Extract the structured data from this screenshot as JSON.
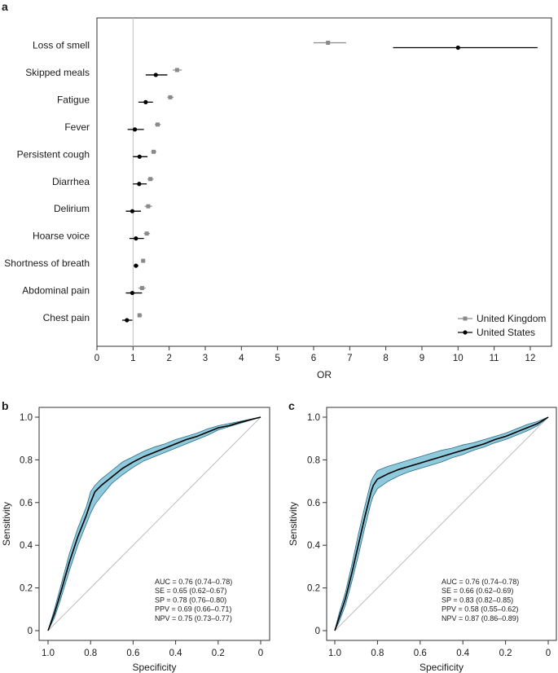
{
  "colors": {
    "uk": "#8a8a8a",
    "us": "#000000",
    "band_fill": "#8ec9dc",
    "band_stroke": "#2b6f86",
    "refline": "#bdbdbd",
    "axis": "#333333"
  },
  "chart_data": [
    {
      "panel": "a",
      "type": "forest",
      "xlabel": "OR",
      "xlim": [
        0,
        12.5
      ],
      "xticks": [
        "0",
        "1",
        "2",
        "3",
        "4",
        "5",
        "6",
        "7",
        "8",
        "9",
        "10",
        "11",
        "12"
      ],
      "reference_line": 1,
      "categories": [
        "Loss of smell",
        "Skipped meals",
        "Fatigue",
        "Fever",
        "Persistent cough",
        "Diarrhea",
        "Delirium",
        "Hoarse voice",
        "Shortness of breath",
        "Abdominal pain",
        "Chest pain"
      ],
      "legend": {
        "position": "bottom-right",
        "entries": [
          "United Kingdom",
          "United States"
        ]
      },
      "series": [
        {
          "name": "United Kingdom",
          "marker": "square",
          "or": [
            6.4,
            2.22,
            2.03,
            1.68,
            1.57,
            1.48,
            1.42,
            1.38,
            1.28,
            1.25,
            1.18
          ],
          "lower": [
            6.0,
            2.1,
            1.95,
            1.6,
            1.5,
            1.4,
            1.32,
            1.3,
            1.22,
            1.15,
            1.12
          ],
          "upper": [
            6.9,
            2.35,
            2.12,
            1.77,
            1.65,
            1.57,
            1.53,
            1.47,
            1.34,
            1.35,
            1.25
          ]
        },
        {
          "name": "United States",
          "marker": "circle",
          "or": [
            10.0,
            1.63,
            1.35,
            1.05,
            1.18,
            1.17,
            0.98,
            1.08,
            1.08,
            0.98,
            0.83
          ],
          "lower": [
            8.2,
            1.35,
            1.15,
            0.85,
            1.0,
            1.0,
            0.8,
            0.9,
            1.02,
            0.8,
            0.7
          ],
          "upper": [
            12.2,
            1.95,
            1.55,
            1.3,
            1.4,
            1.38,
            1.22,
            1.3,
            1.15,
            1.25,
            0.98
          ]
        }
      ]
    },
    {
      "panel": "b",
      "type": "line",
      "xlabel": "Specificity",
      "ylabel": "Sensitivity",
      "xlim": [
        1.0,
        0.0
      ],
      "ylim": [
        0.0,
        1.0
      ],
      "xticks": [
        "1.0",
        "0.8",
        "0.6",
        "0.4",
        "0.2",
        "0"
      ],
      "yticks": [
        "0",
        "0.2",
        "0.4",
        "0.6",
        "0.8",
        "1.0"
      ],
      "roc": {
        "specificity": [
          1.0,
          0.97,
          0.94,
          0.9,
          0.86,
          0.82,
          0.8,
          0.78,
          0.75,
          0.7,
          0.65,
          0.6,
          0.55,
          0.5,
          0.45,
          0.4,
          0.35,
          0.3,
          0.25,
          0.2,
          0.15,
          0.1,
          0.05,
          0.0
        ],
        "sensitivity": [
          0.0,
          0.08,
          0.18,
          0.32,
          0.44,
          0.54,
          0.6,
          0.65,
          0.68,
          0.72,
          0.76,
          0.79,
          0.815,
          0.835,
          0.855,
          0.875,
          0.895,
          0.91,
          0.93,
          0.95,
          0.96,
          0.975,
          0.988,
          1.0
        ],
        "ci_lower": [
          0.0,
          0.06,
          0.15,
          0.28,
          0.4,
          0.5,
          0.55,
          0.59,
          0.63,
          0.69,
          0.73,
          0.765,
          0.795,
          0.815,
          0.835,
          0.855,
          0.875,
          0.895,
          0.915,
          0.94,
          0.955,
          0.97,
          0.985,
          1.0
        ],
        "ci_upper": [
          0.0,
          0.1,
          0.21,
          0.36,
          0.48,
          0.58,
          0.65,
          0.68,
          0.71,
          0.75,
          0.79,
          0.815,
          0.84,
          0.86,
          0.875,
          0.895,
          0.91,
          0.925,
          0.945,
          0.96,
          0.97,
          0.98,
          0.99,
          1.0
        ]
      },
      "stats": [
        "AUC = 0.76 (0.74–0.78)",
        "SE = 0.65 (0.62–0.67)",
        "SP = 0.78 (0.76–0.80)",
        "PPV = 0.69 (0.66–0.71)",
        "NPV = 0.75 (0.73–0.77)"
      ]
    },
    {
      "panel": "c",
      "type": "line",
      "xlabel": "Specificity",
      "ylabel": "Sensitivity",
      "xlim": [
        1.0,
        0.0
      ],
      "ylim": [
        0.0,
        1.0
      ],
      "xticks": [
        "1.0",
        "0.8",
        "0.6",
        "0.4",
        "0.2",
        "0"
      ],
      "yticks": [
        "0",
        "0.2",
        "0.4",
        "0.6",
        "0.8",
        "1.0"
      ],
      "roc": {
        "specificity": [
          1.0,
          0.98,
          0.95,
          0.92,
          0.89,
          0.86,
          0.84,
          0.83,
          0.82,
          0.8,
          0.75,
          0.7,
          0.65,
          0.6,
          0.55,
          0.5,
          0.45,
          0.4,
          0.35,
          0.3,
          0.25,
          0.2,
          0.15,
          0.1,
          0.05,
          0.0
        ],
        "sensitivity": [
          0.0,
          0.06,
          0.15,
          0.27,
          0.4,
          0.53,
          0.61,
          0.65,
          0.68,
          0.71,
          0.735,
          0.755,
          0.77,
          0.785,
          0.8,
          0.815,
          0.83,
          0.845,
          0.86,
          0.875,
          0.895,
          0.91,
          0.93,
          0.95,
          0.97,
          1.0
        ],
        "ci_lower": [
          0.0,
          0.04,
          0.12,
          0.23,
          0.35,
          0.48,
          0.56,
          0.6,
          0.63,
          0.665,
          0.7,
          0.725,
          0.745,
          0.76,
          0.775,
          0.79,
          0.81,
          0.825,
          0.845,
          0.86,
          0.88,
          0.895,
          0.915,
          0.935,
          0.96,
          1.0
        ],
        "ci_upper": [
          0.0,
          0.08,
          0.18,
          0.31,
          0.45,
          0.58,
          0.66,
          0.7,
          0.72,
          0.75,
          0.77,
          0.785,
          0.8,
          0.815,
          0.83,
          0.845,
          0.855,
          0.87,
          0.88,
          0.895,
          0.91,
          0.925,
          0.945,
          0.965,
          0.98,
          1.0
        ]
      },
      "stats": [
        "AUC = 0.76 (0.74–0.78)",
        "SE = 0.66 (0.62–0.69)",
        "SP = 0.83 (0.82–0.85)",
        "PPV = 0.58 (0.55–0.62)",
        "NPV = 0.87 (0.86–0.89)"
      ]
    }
  ]
}
